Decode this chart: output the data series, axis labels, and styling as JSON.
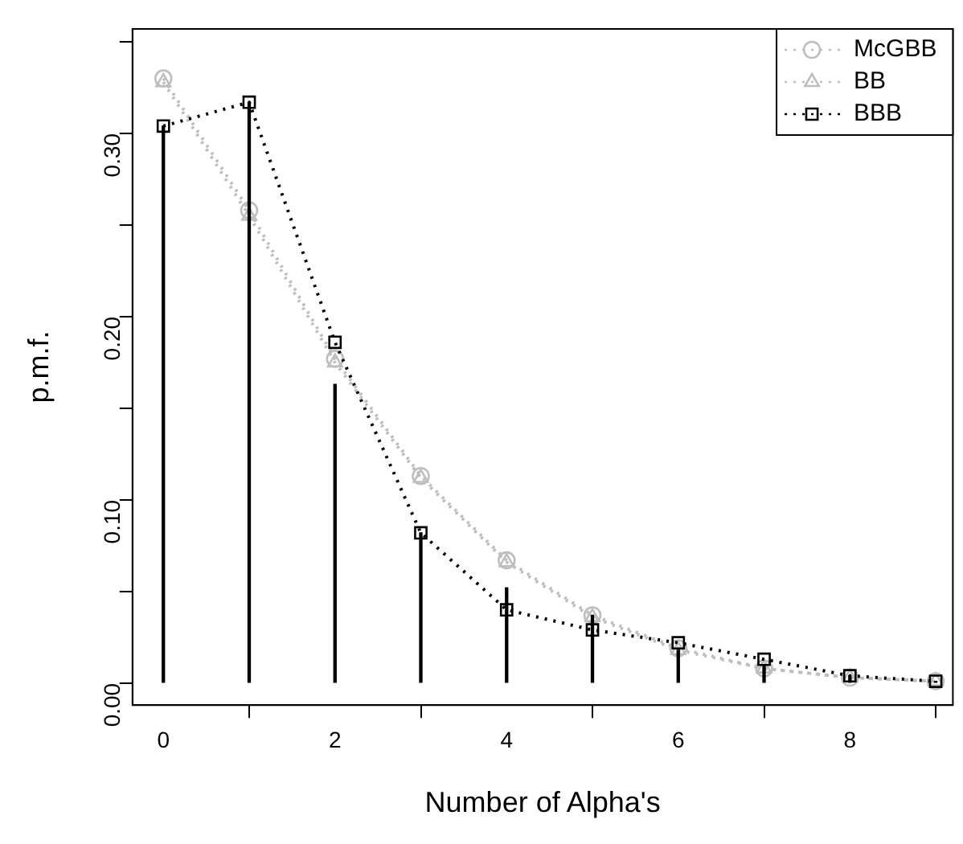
{
  "chart_data": {
    "type": "line",
    "xlabel": "Number of Alpha's",
    "ylabel": "p.m.f.",
    "x": [
      0,
      1,
      2,
      3,
      4,
      5,
      6,
      7,
      8,
      9
    ],
    "xlim": [
      -0.36,
      9.2
    ],
    "xticks": [
      0,
      2,
      4,
      6,
      8
    ],
    "ylim": [
      -0.012,
      0.357
    ],
    "yticks": [
      {
        "value": 0,
        "label": "0.00"
      },
      {
        "value": 0.05,
        "label": null
      },
      {
        "value": 0.1,
        "label": "0.10"
      },
      {
        "value": 0.15,
        "label": null
      },
      {
        "value": 0.2,
        "label": "0.20"
      },
      {
        "value": 0.25,
        "label": null
      },
      {
        "value": 0.3,
        "label": "0.30"
      },
      {
        "value": 0.35,
        "label": null
      }
    ],
    "grid": false,
    "legend": "top right",
    "series": [
      {
        "type": "bar",
        "color": "#000000",
        "values": [
          0.304,
          0.317,
          0.163,
          0.082,
          0.052,
          0.037,
          0.018,
          0.01,
          0.004,
          0.001
        ]
      },
      {
        "name": "McGBB",
        "color": "#bebebe",
        "marker": "circle",
        "line_style": "dotted",
        "values": [
          0.33,
          0.258,
          0.177,
          0.113,
          0.067,
          0.037,
          0.019,
          0.008,
          0.003,
          0.001
        ]
      },
      {
        "name": "BB",
        "color": "#bebebe",
        "marker": "triangle",
        "line_style": "dotted",
        "values": [
          0.328,
          0.255,
          0.175,
          0.112,
          0.066,
          0.036,
          0.018,
          0.008,
          0.003,
          0.001
        ]
      },
      {
        "name": "BBB",
        "color": "#000000",
        "marker": "square",
        "line_style": "dotted",
        "values": [
          0.304,
          0.317,
          0.186,
          0.082,
          0.04,
          0.029,
          0.022,
          0.013,
          0.004,
          0.001
        ]
      }
    ]
  }
}
